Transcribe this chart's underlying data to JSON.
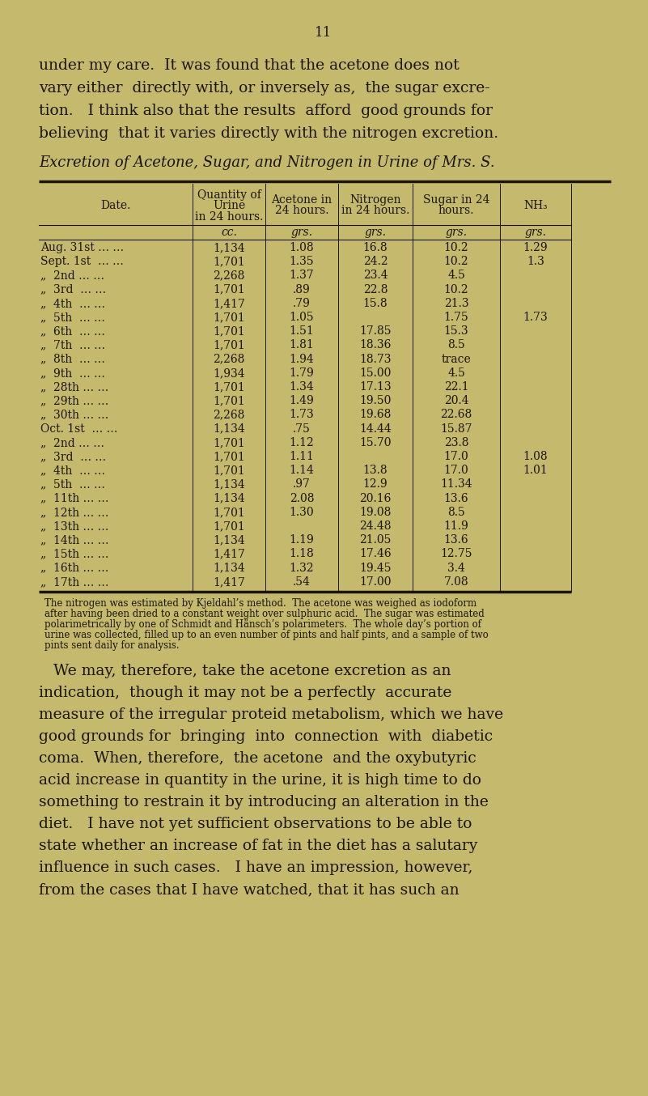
{
  "bg_color": "#c5b96e",
  "text_color": "#1a1508",
  "page_num": "11",
  "intro_lines": [
    "under my care.  It was found that the acetone does not",
    "vary either  directly with, or inversely as,  the sugar excre-",
    "tion.   I think also that the results  afford  good grounds for",
    "believing  that it varies directly with the nitrogen excretion."
  ],
  "table_title": "Excretion of Acetone, Sugar, and Nitrogen in Urine of Mrs. S.",
  "col_headers": [
    "Date.",
    "Quantity of\nUrine\nin 24 hours.",
    "Acetone in\n24 hours.",
    "Nitrogen\nin 24 hours.",
    "Sugar in 24\nhours.",
    "NH₃"
  ],
  "col_units": [
    "",
    "cc.",
    "grs.",
    "grs.",
    "grs.",
    "grs."
  ],
  "rows": [
    [
      "Aug. 31st … …",
      "1,134",
      "1.08",
      "16.8",
      "10.2",
      "1.29"
    ],
    [
      "Sept. 1st  … …",
      "1,701",
      "1.35",
      "24.2",
      "10.2",
      "1.3"
    ],
    [
      "„  2nd … …",
      "2,268",
      "1.37",
      "23.4",
      "4.5",
      ""
    ],
    [
      "„  3rd  … …",
      "1,701",
      ".89",
      "22.8",
      "10.2",
      ""
    ],
    [
      "„  4th  … …",
      "1,417",
      ".79",
      "15.8",
      "21.3",
      ""
    ],
    [
      "„  5th  … …",
      "1,701",
      "1.05",
      "",
      "1.75",
      "1.73"
    ],
    [
      "„  6th  … …",
      "1,701",
      "1.51",
      "17.85",
      "15.3",
      ""
    ],
    [
      "„  7th  … …",
      "1,701",
      "1.81",
      "18.36",
      "8.5",
      ""
    ],
    [
      "„  8th  … …",
      "2,268",
      "1.94",
      "18.73",
      "trace",
      ""
    ],
    [
      "„  9th  … …",
      "1,934",
      "1.79",
      "15.00",
      "4.5",
      ""
    ],
    [
      "„  28th … …",
      "1,701",
      "1.34",
      "17.13",
      "22.1",
      ""
    ],
    [
      "„  29th … …",
      "1,701",
      "1.49",
      "19.50",
      "20.4",
      ""
    ],
    [
      "„  30th … …",
      "2,268",
      "1.73",
      "19.68",
      "22.68",
      ""
    ],
    [
      "Oct. 1st  … …",
      "1,134",
      ".75",
      "14.44",
      "15.87",
      ""
    ],
    [
      "„  2nd … …",
      "1,701",
      "1.12",
      "15.70",
      "23.8",
      ""
    ],
    [
      "„  3rd  … …",
      "1,701",
      "1.11",
      "",
      "17.0",
      "1.08"
    ],
    [
      "„  4th  … …",
      "1,701",
      "1.14",
      "13.8",
      "17.0",
      "1.01"
    ],
    [
      "„  5th  … …",
      "1,134",
      ".97",
      "12.9",
      "11.34",
      ""
    ],
    [
      "„  11th … …",
      "1,134",
      "2.08",
      "20.16",
      "13.6",
      ""
    ],
    [
      "„  12th … …",
      "1,701",
      "1.30",
      "19.08",
      "8.5",
      ""
    ],
    [
      "„  13th … …",
      "1,701",
      "",
      "24.48",
      "11.9",
      ""
    ],
    [
      "„  14th … …",
      "1,134",
      "1.19",
      "21.05",
      "13.6",
      ""
    ],
    [
      "„  15th … …",
      "1,417",
      "1.18",
      "17.46",
      "12.75",
      ""
    ],
    [
      "„  16th … …",
      "1,134",
      "1.32",
      "19.45",
      "3.4",
      ""
    ],
    [
      "„  17th … …",
      "1,417",
      ".54",
      "17.00",
      "7.08",
      ""
    ]
  ],
  "footnote_lines": [
    "The nitrogen was estimated by Kjeldahl’s method.  The acetone was weighed as iodoform",
    "after having been dried to a constant weight over sulphuric acid.  The sugar was estimated",
    "polarimetrically by one of Schmidt and Hänsch’s polarimeters.  The whole day’s portion of",
    "urine was collected, filled up to an even number of pints and half pints, and a sample of two",
    "pints sent daily for analysis."
  ],
  "body_lines": [
    "   We may, therefore, take the acetone excretion as an",
    "indication,  though it may not be a perfectly  accurate",
    "measure of the irregular proteid metabolism, which we have",
    "good grounds for  bringing  into  connection  with  diabetic",
    "coma.  When, therefore,  the acetone  and the oxybutyric",
    "acid increase in quantity in the urine, it is high time to do",
    "something to restrain it by introducing an alteration in the",
    "diet.   I have not yet sufficient observations to be able to",
    "state whether an increase of fat in the diet has a salutary",
    "influence in such cases.   I have an impression, however,",
    "from the cases that I have watched, that it has such an"
  ]
}
